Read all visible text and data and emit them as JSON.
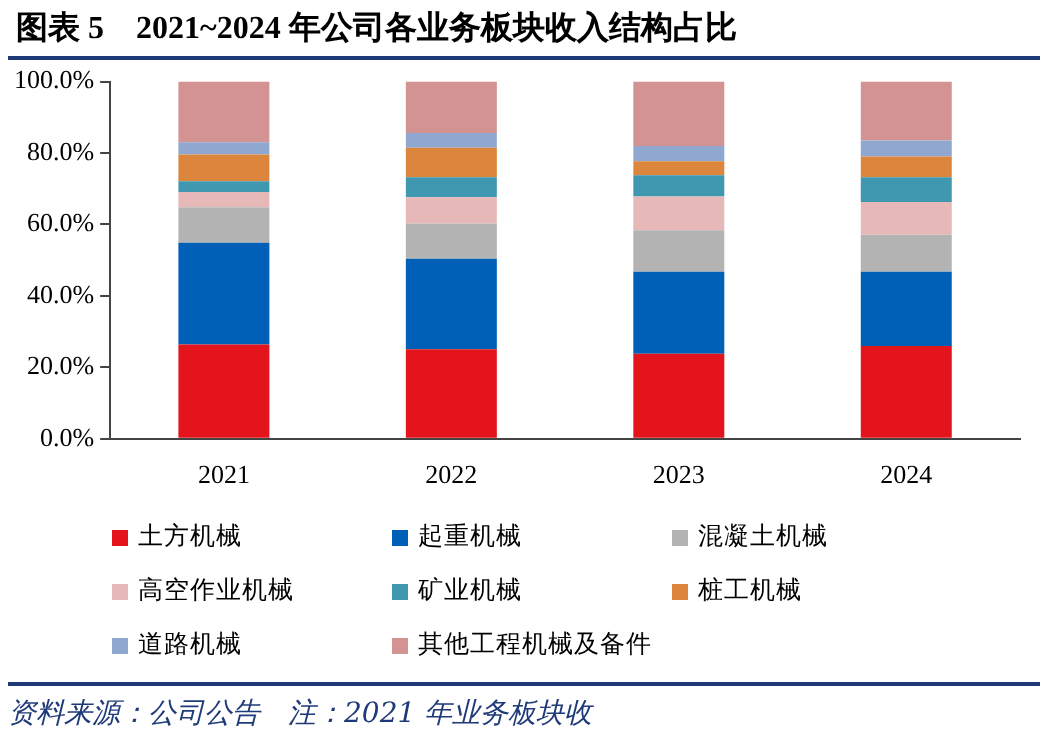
{
  "chart_data": {
    "type": "bar",
    "title": "图表 5　2021~2024 年公司各业务板块收入结构占比",
    "categories": [
      "2021",
      "2022",
      "2023",
      "2024"
    ],
    "stacked": true,
    "series": [
      {
        "name": "土方机械",
        "color": "#e3141c",
        "values": [
          26.4,
          25.1,
          23.8,
          26.0
        ]
      },
      {
        "name": "起重机械",
        "color": "#0060b8",
        "values": [
          28.5,
          25.3,
          23.0,
          20.8
        ]
      },
      {
        "name": "混凝土机械",
        "color": "#b3b3b3",
        "values": [
          9.9,
          9.9,
          11.6,
          10.3
        ]
      },
      {
        "name": "高空作业机械",
        "color": "#e6b8b8",
        "values": [
          4.3,
          7.3,
          9.4,
          9.2
        ]
      },
      {
        "name": "矿业机械",
        "color": "#3f98b0",
        "values": [
          3.0,
          5.6,
          6.0,
          6.9
        ]
      },
      {
        "name": "桩工机械",
        "color": "#dc853c",
        "values": [
          7.5,
          8.3,
          3.9,
          5.8
        ]
      },
      {
        "name": "道路机械",
        "color": "#90a8d0",
        "values": [
          3.4,
          4.1,
          4.3,
          4.5
        ]
      },
      {
        "name": "其他工程机械及备件",
        "color": "#d39393",
        "values": [
          17.0,
          14.4,
          18.0,
          16.5
        ]
      }
    ],
    "ylim": [
      0,
      100
    ],
    "yticks": [
      {
        "value": 0,
        "label": "0.0%"
      },
      {
        "value": 20,
        "label": "20.0%"
      },
      {
        "value": 40,
        "label": "40.0%"
      },
      {
        "value": 60,
        "label": "60.0%"
      },
      {
        "value": 80,
        "label": "80.0%"
      },
      {
        "value": 100,
        "label": "100.0%"
      }
    ],
    "grid": false,
    "legend": "bottom",
    "annotations": [
      "资料来源：公司公告　注：2021 年业务板块收"
    ]
  }
}
